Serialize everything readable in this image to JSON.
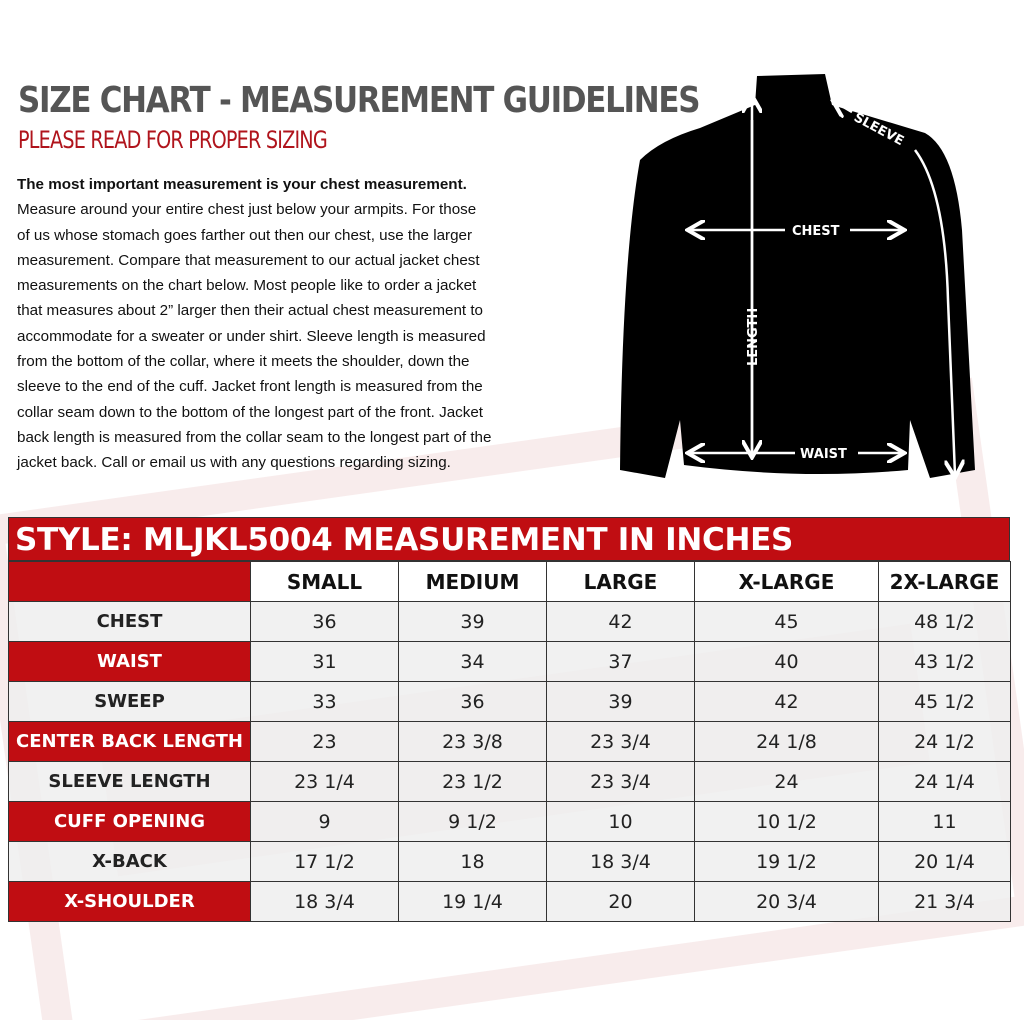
{
  "header": {
    "title": "SIZE CHART - MEASUREMENT GUIDELINES",
    "subtitle": "PLEASE READ FOR PROPER SIZING"
  },
  "instructions": {
    "lead": "The most important measurement is your chest measurement.",
    "lines": [
      "Measure around your entire chest just below your armpits.  For those",
      "of us whose stomach goes farther out then our chest, use the larger",
      "measurement. Compare that measurement to our actual jacket chest",
      "measurements on the chart below. Most people like to order a jacket",
      "that measures about 2” larger then their actual chest measurement to",
      "accommodate for a sweater or under shirt. Sleeve length is measured",
      "from the bottom of the collar, where it meets the shoulder, down the",
      "sleeve to the end of the cuff.  Jacket front length is measured from the",
      "collar seam down to the bottom of the longest part of the front. Jacket",
      "back length is measured from the collar seam to the longest part of the",
      "jacket back.  Call or email us with any questions regarding sizing."
    ]
  },
  "diagram": {
    "sleeve": "SLEEVE",
    "chest": "CHEST",
    "length": "LENGTH",
    "waist": "WAIST"
  },
  "table": {
    "title": "STYLE: MLJKL5004 MEASUREMENT IN INCHES",
    "columns": [
      "SMALL",
      "MEDIUM",
      "LARGE",
      "X-LARGE",
      "2X-LARGE"
    ],
    "rows": [
      {
        "label": "CHEST",
        "values": [
          "36",
          "39",
          "42",
          "45",
          "48 1/2"
        ]
      },
      {
        "label": "WAIST",
        "values": [
          "31",
          "34",
          "37",
          "40",
          "43 1/2"
        ]
      },
      {
        "label": "SWEEP",
        "values": [
          "33",
          "36",
          "39",
          "42",
          "45 1/2"
        ]
      },
      {
        "label": "CENTER BACK LENGTH",
        "values": [
          "23",
          "23 3/8",
          "23 3/4",
          "24 1/8",
          "24 1/2"
        ]
      },
      {
        "label": "SLEEVE LENGTH",
        "values": [
          "23 1/4",
          "23 1/2",
          "23 3/4",
          "24",
          "24 1/4"
        ]
      },
      {
        "label": "CUFF OPENING",
        "values": [
          "9",
          "9 1/2",
          "10",
          "10 1/2",
          "11"
        ]
      },
      {
        "label": "X-BACK",
        "values": [
          "17 1/2",
          "18",
          "18 3/4",
          "19 1/2",
          "20 1/4"
        ]
      },
      {
        "label": "X-SHOULDER",
        "values": [
          "18 3/4",
          "19 1/4",
          "20",
          "20 3/4",
          "21 3/4"
        ]
      }
    ]
  },
  "colors": {
    "accent_red": "#c00d12",
    "title_gray": "#555555"
  }
}
